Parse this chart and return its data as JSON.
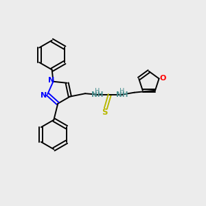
{
  "bg_color": "#ececec",
  "bond_color": "#000000",
  "n_color": "#0000ff",
  "o_color": "#ff0000",
  "s_color": "#b8b800",
  "h_color": "#4a9090",
  "lw": 1.4,
  "fs": 7.5,
  "xlim": [
    0,
    10
  ],
  "ylim": [
    0,
    10
  ]
}
